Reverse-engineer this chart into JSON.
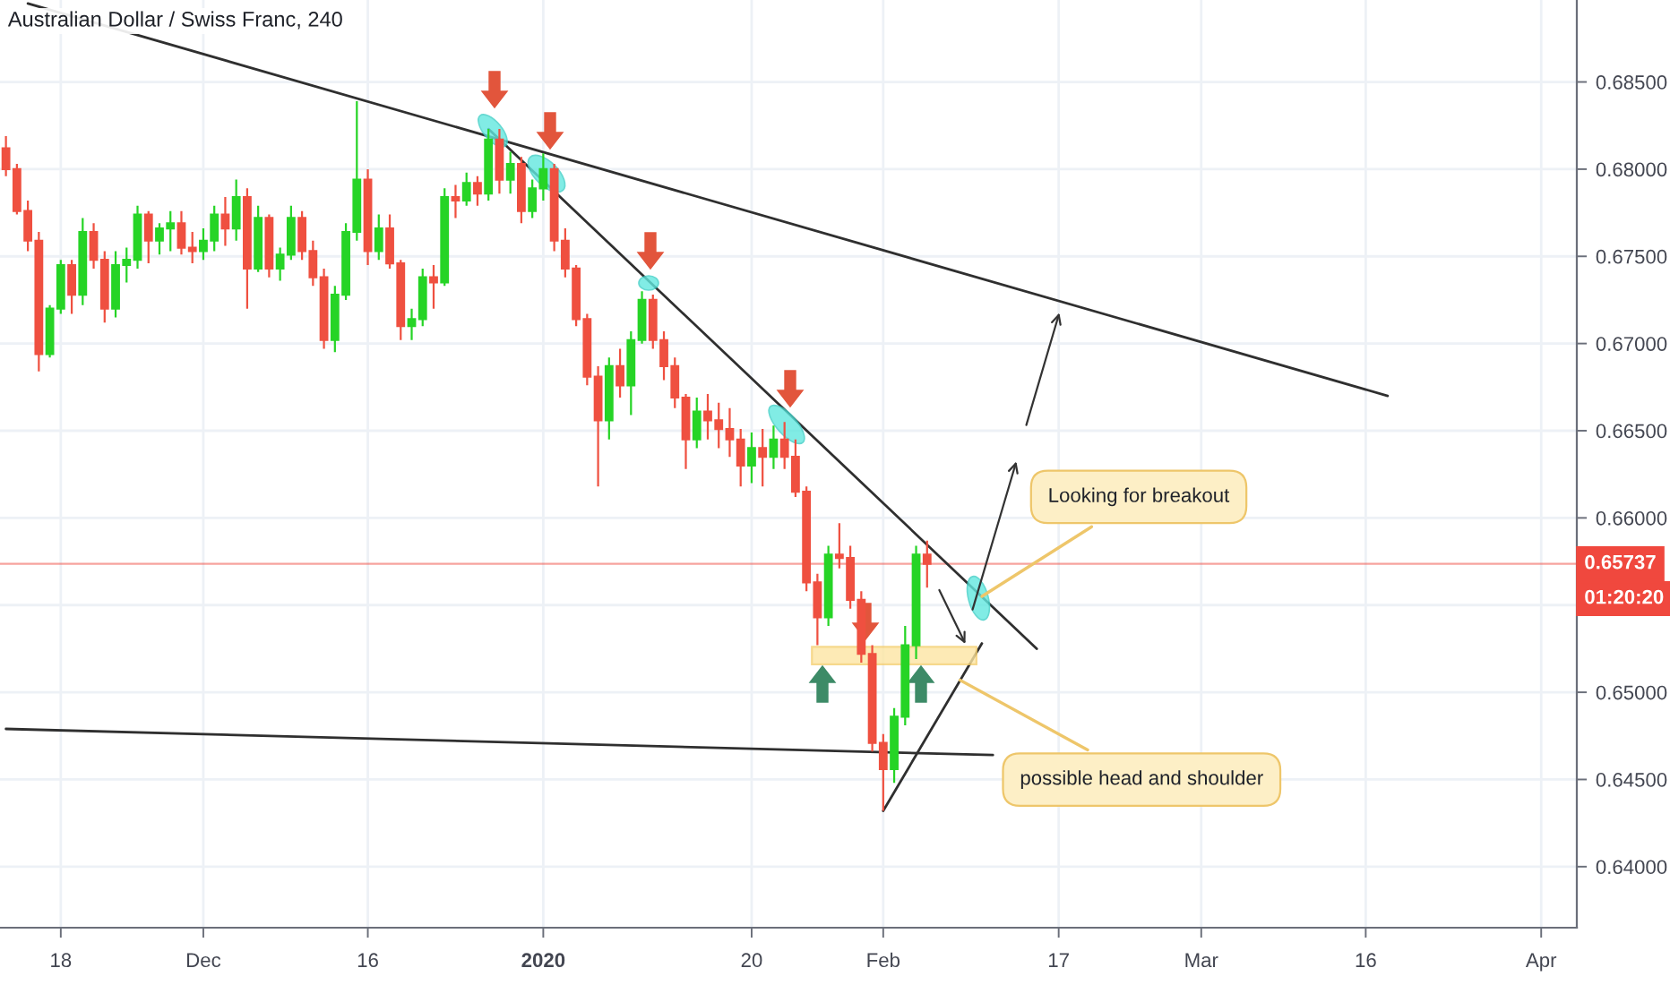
{
  "chart_data": {
    "type": "candlestick",
    "title": "Australian Dollar / Swiss Franc, 240",
    "x": [
      "2019-11-13",
      "2019-11-14",
      "2019-11-15",
      "2019-11-16",
      "2019-11-17",
      "2019-11-18",
      "2019-11-19",
      "2019-11-20",
      "2019-11-21",
      "2019-11-22",
      "2019-11-23",
      "2019-11-24",
      "2019-11-25",
      "2019-11-26",
      "2019-11-27",
      "2019-11-28",
      "2019-11-29",
      "2019-11-30",
      "2019-12-01",
      "2019-12-02",
      "2019-12-03",
      "2019-12-04",
      "2019-12-05",
      "2019-12-06",
      "2019-12-07",
      "2019-12-08",
      "2019-12-09",
      "2019-12-10",
      "2019-12-11",
      "2019-12-12",
      "2019-12-13",
      "2019-12-14",
      "2019-12-15",
      "2019-12-16",
      "2019-12-17",
      "2019-12-18",
      "2019-12-19",
      "2019-12-20",
      "2019-12-21",
      "2019-12-22",
      "2019-12-23",
      "2019-12-24",
      "2019-12-25",
      "2019-12-26",
      "2019-12-27",
      "2019-12-28",
      "2019-12-29",
      "2019-12-30",
      "2019-12-31",
      "2020-01-01",
      "2020-01-02",
      "2020-01-03",
      "2020-01-04",
      "2020-01-05",
      "2020-01-06",
      "2020-01-07",
      "2020-01-08",
      "2020-01-09",
      "2020-01-10",
      "2020-01-11",
      "2020-01-12",
      "2020-01-13",
      "2020-01-14",
      "2020-01-15",
      "2020-01-16",
      "2020-01-17",
      "2020-01-18",
      "2020-01-19",
      "2020-01-20",
      "2020-01-21",
      "2020-01-22",
      "2020-01-23",
      "2020-01-24",
      "2020-01-25",
      "2020-01-26",
      "2020-01-27",
      "2020-01-28",
      "2020-01-29",
      "2020-01-30",
      "2020-01-31",
      "2020-02-01",
      "2020-02-02",
      "2020-02-03",
      "2020-02-04",
      "2020-02-05"
    ],
    "ohlc": [
      [
        0.6812,
        0.6819,
        0.6796,
        0.68
      ],
      [
        0.68,
        0.6803,
        0.6774,
        0.6776
      ],
      [
        0.6776,
        0.6782,
        0.6753,
        0.6759
      ],
      [
        0.6759,
        0.6764,
        0.6684,
        0.6694
      ],
      [
        0.6694,
        0.6722,
        0.6692,
        0.672
      ],
      [
        0.672,
        0.6748,
        0.6717,
        0.6745
      ],
      [
        0.6745,
        0.6748,
        0.6717,
        0.6728
      ],
      [
        0.6728,
        0.6772,
        0.6722,
        0.6764
      ],
      [
        0.6764,
        0.6769,
        0.6743,
        0.6748
      ],
      [
        0.6748,
        0.6753,
        0.6712,
        0.672
      ],
      [
        0.672,
        0.6753,
        0.6715,
        0.6745
      ],
      [
        0.6745,
        0.6755,
        0.6735,
        0.6748
      ],
      [
        0.6748,
        0.6779,
        0.6743,
        0.6774
      ],
      [
        0.6774,
        0.6776,
        0.6746,
        0.6759
      ],
      [
        0.6759,
        0.6769,
        0.6751,
        0.6766
      ],
      [
        0.6766,
        0.6776,
        0.6753,
        0.6769
      ],
      [
        0.6769,
        0.6776,
        0.6751,
        0.6755
      ],
      [
        0.6755,
        0.6764,
        0.6746,
        0.6753
      ],
      [
        0.6753,
        0.6766,
        0.6748,
        0.6759
      ],
      [
        0.6759,
        0.6779,
        0.6753,
        0.6774
      ],
      [
        0.6774,
        0.6784,
        0.6756,
        0.6766
      ],
      [
        0.6766,
        0.6794,
        0.6759,
        0.6784
      ],
      [
        0.6784,
        0.6789,
        0.672,
        0.6743
      ],
      [
        0.6743,
        0.6779,
        0.6741,
        0.6772
      ],
      [
        0.6772,
        0.6774,
        0.6738,
        0.6743
      ],
      [
        0.6743,
        0.6755,
        0.6736,
        0.6751
      ],
      [
        0.6751,
        0.6779,
        0.6748,
        0.6772
      ],
      [
        0.6772,
        0.6776,
        0.6748,
        0.6753
      ],
      [
        0.6753,
        0.6759,
        0.6733,
        0.6738
      ],
      [
        0.6738,
        0.6743,
        0.6697,
        0.6702
      ],
      [
        0.6702,
        0.6733,
        0.6695,
        0.6728
      ],
      [
        0.6728,
        0.6769,
        0.6725,
        0.6764
      ],
      [
        0.6764,
        0.6839,
        0.6759,
        0.6794
      ],
      [
        0.6794,
        0.68,
        0.6745,
        0.6753
      ],
      [
        0.6753,
        0.6774,
        0.6748,
        0.6766
      ],
      [
        0.6766,
        0.6774,
        0.6743,
        0.6746
      ],
      [
        0.6746,
        0.6748,
        0.6702,
        0.671
      ],
      [
        0.671,
        0.672,
        0.6702,
        0.6714
      ],
      [
        0.6714,
        0.6743,
        0.671,
        0.6738
      ],
      [
        0.6738,
        0.6745,
        0.672,
        0.6735
      ],
      [
        0.6735,
        0.6789,
        0.6733,
        0.6784
      ],
      [
        0.6784,
        0.6791,
        0.6772,
        0.6782
      ],
      [
        0.6782,
        0.6798,
        0.6779,
        0.6792
      ],
      [
        0.6792,
        0.6796,
        0.6779,
        0.6786
      ],
      [
        0.6786,
        0.6823,
        0.6782,
        0.6817
      ],
      [
        0.6817,
        0.6823,
        0.6786,
        0.6794
      ],
      [
        0.6794,
        0.681,
        0.6786,
        0.6803
      ],
      [
        0.6803,
        0.6807,
        0.6769,
        0.6776
      ],
      [
        0.6776,
        0.6794,
        0.6772,
        0.6789
      ],
      [
        0.6789,
        0.6809,
        0.6782,
        0.68
      ],
      [
        0.68,
        0.6803,
        0.6753,
        0.6759
      ],
      [
        0.6759,
        0.6766,
        0.6738,
        0.6743
      ],
      [
        0.6743,
        0.6745,
        0.671,
        0.6714
      ],
      [
        0.6714,
        0.6717,
        0.6676,
        0.6681
      ],
      [
        0.6681,
        0.6687,
        0.6618,
        0.6656
      ],
      [
        0.6656,
        0.6692,
        0.6645,
        0.6687
      ],
      [
        0.6687,
        0.6697,
        0.6669,
        0.6676
      ],
      [
        0.6676,
        0.6707,
        0.6659,
        0.6702
      ],
      [
        0.6702,
        0.673,
        0.67,
        0.6725
      ],
      [
        0.6725,
        0.6728,
        0.6697,
        0.6702
      ],
      [
        0.6702,
        0.6707,
        0.6679,
        0.6687
      ],
      [
        0.6687,
        0.6692,
        0.6663,
        0.6669
      ],
      [
        0.6669,
        0.6671,
        0.6628,
        0.6645
      ],
      [
        0.6645,
        0.6669,
        0.664,
        0.6661
      ],
      [
        0.6661,
        0.6671,
        0.6645,
        0.6656
      ],
      [
        0.6656,
        0.6666,
        0.664,
        0.6651
      ],
      [
        0.6651,
        0.6663,
        0.6635,
        0.6645
      ],
      [
        0.6645,
        0.6651,
        0.6618,
        0.663
      ],
      [
        0.663,
        0.6649,
        0.662,
        0.664
      ],
      [
        0.664,
        0.6651,
        0.6618,
        0.6635
      ],
      [
        0.6635,
        0.6653,
        0.6628,
        0.6645
      ],
      [
        0.6645,
        0.6655,
        0.6628,
        0.6635
      ],
      [
        0.6635,
        0.6645,
        0.6612,
        0.6615
      ],
      [
        0.6615,
        0.6618,
        0.6558,
        0.6563
      ],
      [
        0.6563,
        0.6568,
        0.6527,
        0.6543
      ],
      [
        0.6543,
        0.6584,
        0.6538,
        0.6579
      ],
      [
        0.6579,
        0.6597,
        0.6571,
        0.6577
      ],
      [
        0.6577,
        0.6584,
        0.6548,
        0.6553
      ],
      [
        0.6553,
        0.6558,
        0.6517,
        0.6522
      ],
      [
        0.6522,
        0.6527,
        0.6466,
        0.6471
      ],
      [
        0.6471,
        0.6476,
        0.6432,
        0.6456
      ],
      [
        0.6456,
        0.6491,
        0.6448,
        0.6486
      ],
      [
        0.6486,
        0.6538,
        0.6481,
        0.6527
      ],
      [
        0.6527,
        0.6584,
        0.6519,
        0.6579
      ],
      [
        0.6579,
        0.6587,
        0.656,
        0.65737
      ]
    ],
    "colors": [
      "#ef5040",
      "#ef5040",
      "#ef5040",
      "#ef5040",
      "#26d426",
      "#26d426",
      "#ef5040",
      "#26d426",
      "#ef5040",
      "#ef5040",
      "#26d426",
      "#26d426",
      "#26d426",
      "#ef5040",
      "#26d426",
      "#26d426",
      "#ef5040",
      "#ef5040",
      "#26d426",
      "#26d426",
      "#ef5040",
      "#26d426",
      "#ef5040",
      "#26d426",
      "#ef5040",
      "#26d426",
      "#26d426",
      "#ef5040",
      "#ef5040",
      "#ef5040",
      "#26d426",
      "#26d426",
      "#26d426",
      "#ef5040",
      "#26d426",
      "#ef5040",
      "#ef5040",
      "#26d426",
      "#26d426",
      "#ef5040",
      "#26d426",
      "#ef5040",
      "#26d426",
      "#ef5040",
      "#26d426",
      "#ef5040",
      "#26d426",
      "#ef5040",
      "#26d426",
      "#26d426",
      "#ef5040",
      "#ef5040",
      "#ef5040",
      "#ef5040",
      "#ef5040",
      "#26d426",
      "#ef5040",
      "#26d426",
      "#26d426",
      "#ef5040",
      "#ef5040",
      "#ef5040",
      "#ef5040",
      "#26d426",
      "#ef5040",
      "#ef5040",
      "#ef5040",
      "#ef5040",
      "#26d426",
      "#ef5040",
      "#26d426",
      "#ef5040",
      "#ef5040",
      "#ef5040",
      "#ef5040",
      "#26d426",
      "#ef5040",
      "#ef5040",
      "#ef5040",
      "#ef5040",
      "#ef5040",
      "#26d426",
      "#26d426",
      "#26d426",
      "#ef5040"
    ],
    "series": [
      {
        "type": "line",
        "color": "#2f2f2f",
        "x": [
          "2019-11-15",
          "2020-03-18"
        ],
        "values": [
          0.6895,
          0.667
        ]
      },
      {
        "type": "line",
        "color": "#2f2f2f",
        "x": [
          "2019-12-27",
          "2020-02-15"
        ],
        "values": [
          0.6823,
          0.6525
        ]
      },
      {
        "type": "line",
        "color": "#2f2f2f",
        "x": [
          "2019-11-13",
          "2020-02-11"
        ],
        "values": [
          0.6479,
          0.6464
        ]
      },
      {
        "type": "line",
        "color": "#2f2f2f",
        "x": [
          "2020-02-01",
          "2020-02-10"
        ],
        "values": [
          0.6432,
          0.6528
        ]
      },
      {
        "type": "bar",
        "color": "#fde6a3",
        "x": [
          "2020-02-02"
        ],
        "values": [
          0.001
        ],
        "base": [
          0.6516
        ]
      }
    ],
    "xlim": [
      "2019-11-12T11:00",
      "2020-04-04T06:00"
    ],
    "ylim": [
      0.6365,
      0.6897
    ],
    "xticks": [
      {
        "value": "2019-11-18",
        "label": "18"
      },
      {
        "value": "2019-12-01",
        "label": "Dec"
      },
      {
        "value": "2019-12-16",
        "label": "16"
      },
      {
        "value": "2020-01-01",
        "label": "2020"
      },
      {
        "value": "2020-01-20",
        "label": "20"
      },
      {
        "value": "2020-02-01",
        "label": "Feb"
      },
      {
        "value": "2020-02-17",
        "label": "17"
      },
      {
        "value": "2020-03-01",
        "label": "Mar"
      },
      {
        "value": "2020-03-16",
        "label": "16"
      },
      {
        "value": "2020-04-01",
        "label": "Apr"
      }
    ],
    "yticks": [
      {
        "value": 0.64,
        "label": "0.64000"
      },
      {
        "value": 0.645,
        "label": "0.64500"
      },
      {
        "value": 0.65,
        "label": "0.65000"
      },
      {
        "value": 0.655,
        "label": null
      },
      {
        "value": 0.66,
        "label": "0.66000"
      },
      {
        "value": 0.665,
        "label": "0.66500"
      },
      {
        "value": 0.67,
        "label": "0.67000"
      },
      {
        "value": 0.675,
        "label": "0.67500"
      },
      {
        "value": 0.68,
        "label": "0.68000"
      },
      {
        "value": 0.685,
        "label": "0.68500"
      }
    ],
    "grid": true,
    "ref_lines": [
      {
        "axis": "y",
        "value": 0.65737,
        "label": "0.65737",
        "color": "#f0483e"
      }
    ],
    "annotations": [
      {
        "text": "Looking for breakout",
        "x": "2020-02-10",
        "y": 0.6555
      },
      {
        "text": "possible head and shoulder",
        "x": "2020-02-08",
        "y": 0.6507
      },
      "01:20:20"
    ]
  }
}
